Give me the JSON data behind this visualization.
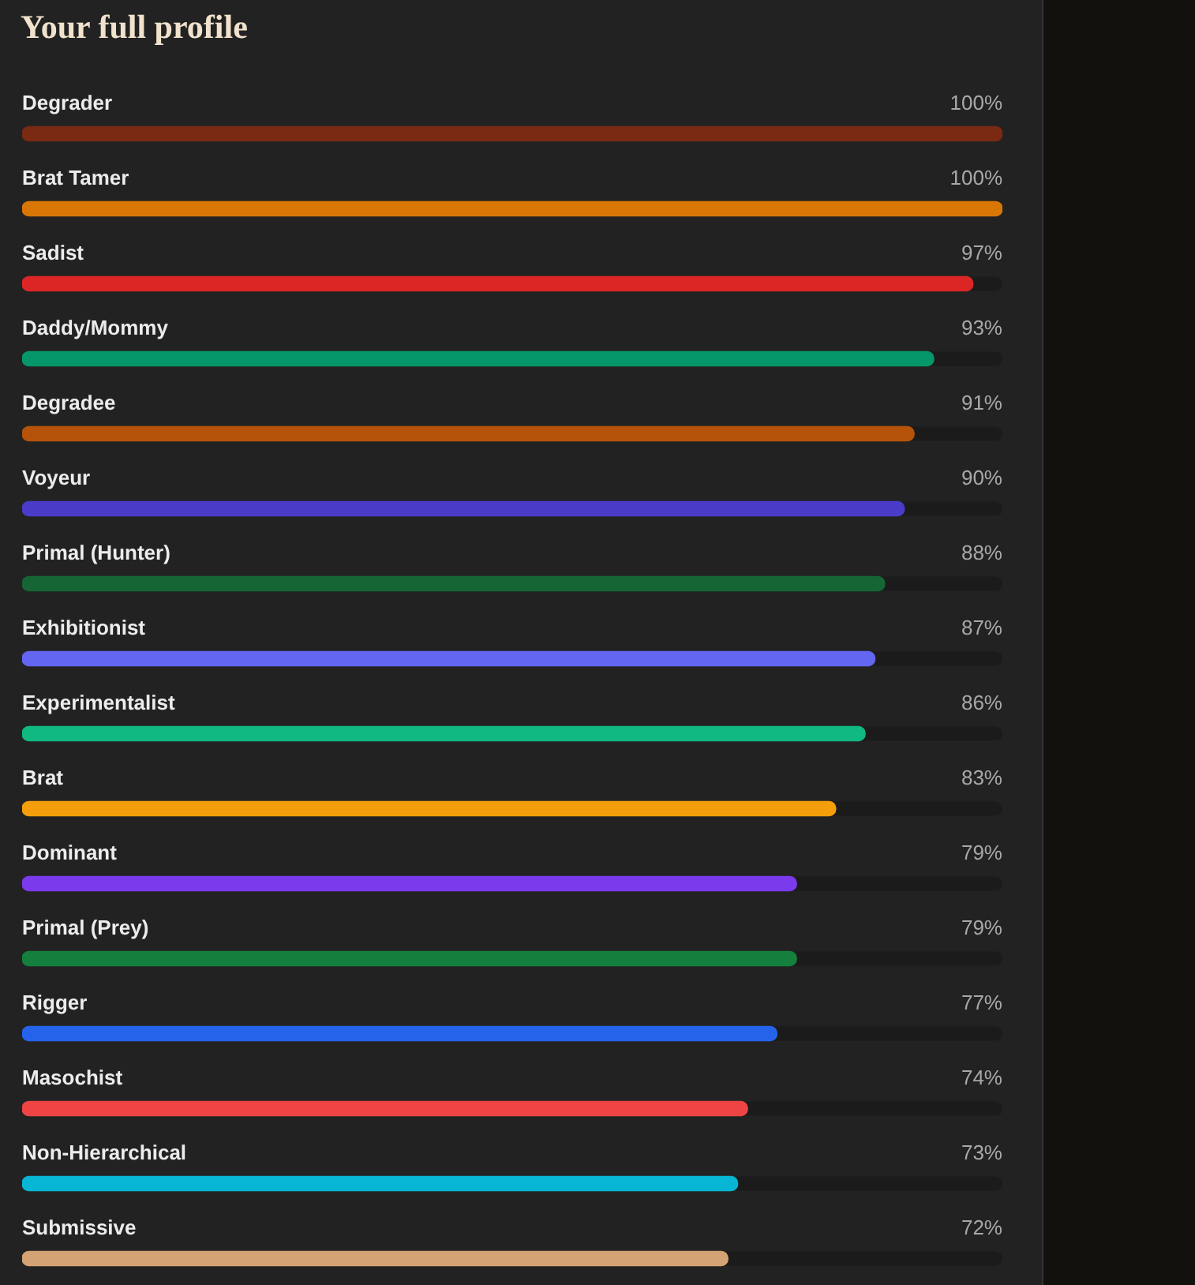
{
  "chart_data": {
    "type": "bar",
    "orientation": "horizontal",
    "title": "Your full profile",
    "categories": [
      "Degrader",
      "Brat Tamer",
      "Sadist",
      "Daddy/Mommy",
      "Degradee",
      "Voyeur",
      "Primal (Hunter)",
      "Exhibitionist",
      "Experimentalist",
      "Brat",
      "Dominant",
      "Primal (Prey)",
      "Rigger",
      "Masochist",
      "Non-Hierarchical",
      "Submissive"
    ],
    "values": [
      100,
      100,
      97,
      93,
      91,
      90,
      88,
      87,
      86,
      83,
      79,
      79,
      77,
      74,
      73,
      72
    ],
    "value_labels": [
      "100%",
      "100%",
      "97%",
      "93%",
      "91%",
      "90%",
      "88%",
      "87%",
      "86%",
      "83%",
      "79%",
      "79%",
      "77%",
      "74%",
      "73%",
      "72%"
    ],
    "colors": [
      "#7a2a12",
      "#d97706",
      "#dc2626",
      "#059669",
      "#b45309",
      "#4a3bc8",
      "#166534",
      "#6366f1",
      "#10b981",
      "#f59e0b",
      "#7c3aed",
      "#15803d",
      "#2563eb",
      "#ef4444",
      "#06b6d4",
      "#d4a373"
    ],
    "xlim": [
      0,
      100
    ],
    "tick_labels": "y"
  }
}
